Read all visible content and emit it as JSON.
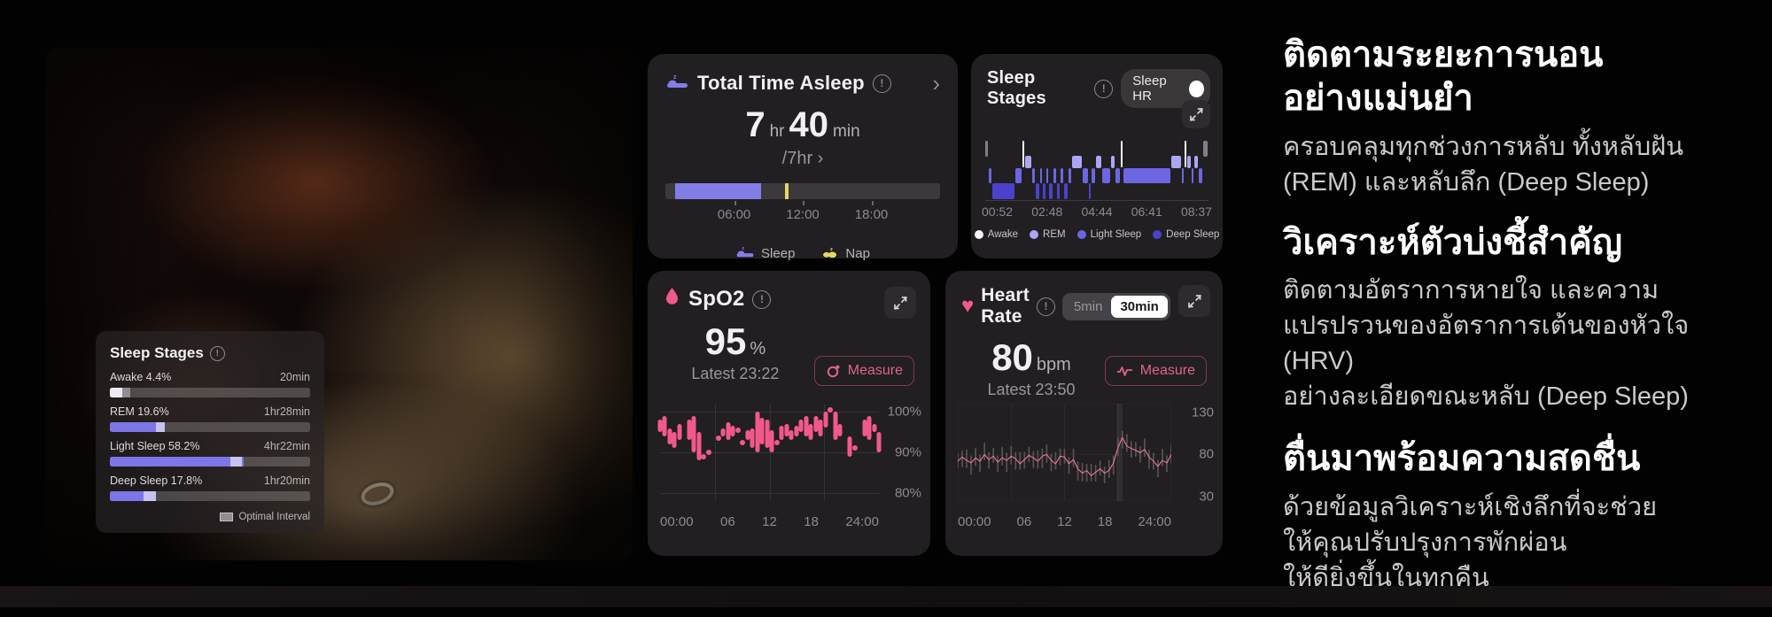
{
  "page": {
    "accent_purple": "#837de8",
    "accent_pink": "#f2598a",
    "accent_yellow": "#e5d861"
  },
  "overlay_card": {
    "title": "Sleep Stages",
    "info_icon": "!",
    "rows": [
      {
        "label": "Awake 4.4%",
        "duration": "20min",
        "fill_pct": 6,
        "fill_color": "#eceaee",
        "marker_left_pct": 6,
        "marker_width_pct": 4,
        "marker_color": "#8f8d92"
      },
      {
        "label": "REM 19.6%",
        "duration": "1hr28min",
        "fill_pct": 24,
        "fill_color": "#7c76e8",
        "marker_left_pct": 23,
        "marker_width_pct": 4.5,
        "marker_color": "#c6c3f0"
      },
      {
        "label": "Light Sleep 58.2%",
        "duration": "4hr22min",
        "fill_pct": 67,
        "fill_color": "#7c76e8",
        "marker_left_pct": 60,
        "marker_width_pct": 6,
        "marker_color": "#c6c3f0"
      },
      {
        "label": "Deep Sleep 17.8%",
        "duration": "1hr20min",
        "fill_pct": 22,
        "fill_color": "#7c76e8",
        "marker_left_pct": 17,
        "marker_width_pct": 6,
        "marker_color": "#c6c3f0"
      }
    ],
    "footer_legend": "Optimal Interval"
  },
  "cards": {
    "total": {
      "title": "Total Time Asleep",
      "info_icon": "!",
      "chevron": "›",
      "hours": "7",
      "hr_unit": "hr",
      "minutes": "40",
      "min_unit": "min",
      "goal": "/7hr ›",
      "legend": [
        {
          "icon": "sleep-bed-icon",
          "label": "Sleep",
          "color": "#837de8"
        },
        {
          "icon": "nap-icon",
          "label": "Nap",
          "color": "#e5d861"
        }
      ]
    },
    "stages": {
      "title": "Sleep Stages",
      "info_icon": "!",
      "toggle_label": "Sleep HR"
    },
    "spo2": {
      "title": "SpO2",
      "info_icon": "!",
      "value": "95",
      "unit": "%",
      "latest": "Latest 23:22",
      "measure_label": "Measure"
    },
    "heart": {
      "title": "Heart Rate",
      "info_icon": "!",
      "seg_options": [
        "5min",
        "30min"
      ],
      "seg_selected": "30min",
      "value": "80",
      "unit": "bpm",
      "latest": "Latest 23:50",
      "measure_label": "Measure"
    }
  },
  "text_column": {
    "sections": [
      {
        "heading": "ติดตามระยะการนอน\nอย่างแม่นยำ",
        "body": "ครอบคลุมทุกช่วงการหลับ ทั้งหลับฝัน\n(REM) และหลับลึก (Deep Sleep)"
      },
      {
        "heading": "วิเคราะห์ตัวบ่งชี้สำคัญ",
        "body": "ติดตามอัตราการหายใจ และความ\nแปรปรวนของอัตราการเต้นของหัวใจ (HRV)\nอย่างละเอียดขณะหลับ (Deep Sleep)"
      },
      {
        "heading": "ตื่นมาพร้อมความสดชื่น",
        "body": "ด้วยข้อมูลวิเคราะห์เชิงลึกที่จะช่วย\nให้คุณปรับปรุงการพักผ่อน\nให้ดียิ่งขึ้นในทุกคืน"
      }
    ]
  },
  "chart_data": [
    {
      "id": "sleep_timeline",
      "type": "bar",
      "title": "Total Time Asleep timeline (24h)",
      "sleep_block": {
        "start_pct": 3.5,
        "width_pct": 31.5,
        "color": "#837de8"
      },
      "nap_block": {
        "start_pct": 43.5,
        "width_pct": 1.4,
        "color": "#e5d861"
      },
      "ticks": [
        {
          "pos_pct": 25,
          "label": "06:00"
        },
        {
          "pos_pct": 50,
          "label": "12:00"
        },
        {
          "pos_pct": 75,
          "label": "18:00"
        }
      ]
    },
    {
      "id": "hypnogram",
      "type": "area",
      "title": "Sleep Stages hypnogram",
      "x_labels": [
        "00:52",
        "02:48",
        "04:44",
        "06:41",
        "08:37"
      ],
      "legend": [
        {
          "label": "Awake",
          "color": "#f5f4f7"
        },
        {
          "label": "REM",
          "color": "#aba6f4"
        },
        {
          "label": "Light Sleep",
          "color": "#6c66e2"
        },
        {
          "label": "Deep Sleep",
          "color": "#4a42cc"
        }
      ],
      "segments": [
        [
          "gray",
          1.5
        ],
        [
          "light",
          1.5
        ],
        [
          "deep",
          10.5
        ],
        [
          "light",
          3
        ],
        [
          "awake",
          1.2
        ],
        [
          "rem",
          3.5
        ],
        [
          "light",
          1.5
        ],
        [
          "deep",
          1.8
        ],
        [
          "light",
          1.2
        ],
        [
          "deep",
          1.8
        ],
        [
          "light",
          1.2
        ],
        [
          "deep",
          1.8
        ],
        [
          "light",
          1.5
        ],
        [
          "deep",
          1.8
        ],
        [
          "light",
          1.5
        ],
        [
          "deep",
          2
        ],
        [
          "light",
          1.5
        ],
        [
          "rem",
          5
        ],
        [
          "light",
          2.5
        ],
        [
          "deep",
          1.5
        ],
        [
          "light",
          2
        ],
        [
          "rem",
          2.5
        ],
        [
          "light",
          4
        ],
        [
          "rem",
          2
        ],
        [
          "light",
          2.5
        ],
        [
          "awake",
          1.2
        ],
        [
          "light",
          21.5
        ],
        [
          "rem",
          4.5
        ],
        [
          "light",
          1.5
        ],
        [
          "awake",
          1.2
        ],
        [
          "rem",
          2
        ],
        [
          "light",
          1
        ],
        [
          "rem",
          2
        ],
        [
          "light",
          2
        ],
        [
          "gray",
          2.3
        ]
      ]
    },
    {
      "id": "spo2",
      "type": "bar",
      "title": "SpO2 (24h)",
      "ylim": [
        78,
        102
      ],
      "y_labels": [
        {
          "v": 100,
          "label": "100%"
        },
        {
          "v": 90,
          "label": "90%"
        },
        {
          "v": 80,
          "label": "80%"
        }
      ],
      "x_labels": [
        "00:00",
        "06",
        "12",
        "18",
        "24:00"
      ],
      "grid_v_pct": [
        25,
        50,
        75
      ],
      "bars": [
        [
          95,
          98
        ],
        [
          94,
          99
        ],
        [
          92,
          96
        ],
        [
          91,
          95
        ],
        [
          93,
          97
        ],
        null,
        [
          93,
          98
        ],
        [
          90,
          99
        ],
        [
          88,
          95
        ],
        [
          89,
          89
        ],
        [
          90,
          90
        ],
        null,
        [
          93.5,
          93.5
        ],
        [
          94,
          96
        ],
        [
          93,
          97.5
        ],
        [
          94,
          96.5
        ],
        [
          95.5,
          95.5
        ],
        [
          92.5,
          92.5
        ],
        [
          93,
          95.5
        ],
        [
          91,
          96
        ],
        [
          90,
          100
        ],
        [
          92,
          98.5
        ],
        [
          91,
          98
        ],
        [
          90,
          95.5
        ],
        [
          92.5,
          92.5
        ],
        [
          93,
          96.5
        ],
        [
          94,
          97
        ],
        [
          93,
          95.5
        ],
        [
          94,
          96.5
        ],
        [
          95,
          98
        ],
        [
          94,
          99
        ],
        [
          93,
          97
        ],
        [
          95,
          99
        ],
        [
          94,
          98
        ],
        [
          96,
          100
        ],
        [
          100.5,
          100.5
        ],
        [
          93,
          100
        ],
        [
          94,
          97
        ],
        null,
        [
          89,
          94
        ],
        [
          91,
          91
        ],
        null,
        [
          94,
          98
        ],
        [
          93,
          99
        ],
        [
          95,
          97
        ],
        [
          90,
          95
        ]
      ]
    },
    {
      "id": "heart_rate",
      "type": "line",
      "title": "Heart Rate (24h)",
      "ylim": [
        25,
        140
      ],
      "y_labels": [
        {
          "v": 130,
          "label": "130"
        },
        {
          "v": 80,
          "label": "80"
        },
        {
          "v": 30,
          "label": "30"
        }
      ],
      "x_labels": [
        "00:00",
        "06",
        "12",
        "18",
        "24:00"
      ],
      "grid_v_pct": [
        25,
        50,
        75
      ],
      "highlight_x_pct": 75.8,
      "values": [
        72,
        77,
        73,
        70,
        76,
        72,
        80,
        74,
        78,
        71,
        76,
        73,
        78,
        75,
        69,
        74,
        79,
        76,
        72,
        78,
        80,
        73,
        69,
        78,
        77,
        69,
        74,
        63,
        58,
        61,
        55,
        59,
        63,
        58,
        61,
        70,
        88,
        100,
        90,
        87,
        85,
        82,
        86,
        77,
        72,
        66,
        73,
        70,
        80
      ],
      "bands": [
        [
          64,
          82
        ],
        [
          65,
          85
        ],
        [
          64,
          86
        ],
        [
          56,
          79
        ],
        [
          66,
          88
        ],
        [
          59,
          80
        ],
        [
          73,
          94
        ],
        [
          63,
          83
        ],
        [
          70,
          88
        ],
        [
          59,
          79
        ],
        [
          67,
          89
        ],
        [
          59,
          82
        ],
        [
          68,
          90
        ],
        [
          62,
          83
        ],
        [
          62,
          83
        ],
        [
          63,
          83
        ],
        [
          71,
          89
        ],
        [
          64,
          84
        ],
        [
          63,
          85
        ],
        [
          64,
          87
        ],
        [
          70,
          92
        ],
        [
          60,
          81
        ],
        [
          62,
          83
        ],
        [
          67,
          87
        ],
        [
          69,
          87
        ],
        [
          57,
          77
        ],
        [
          65,
          87
        ],
        [
          49,
          72
        ],
        [
          48,
          70
        ],
        [
          48,
          69
        ],
        [
          48,
          69
        ],
        [
          48,
          68
        ],
        [
          55,
          73
        ],
        [
          46,
          66
        ],
        [
          52,
          74
        ],
        [
          56,
          79
        ],
        [
          78,
          100
        ],
        [
          87,
          108
        ],
        [
          83,
          104
        ],
        [
          76,
          96
        ],
        [
          77,
          95
        ],
        [
          70,
          90
        ],
        [
          77,
          99
        ],
        [
          63,
          86
        ],
        [
          62,
          82
        ],
        [
          53,
          74
        ],
        [
          66,
          87
        ],
        [
          59,
          79
        ],
        [
          69,
          92
        ]
      ]
    }
  ]
}
